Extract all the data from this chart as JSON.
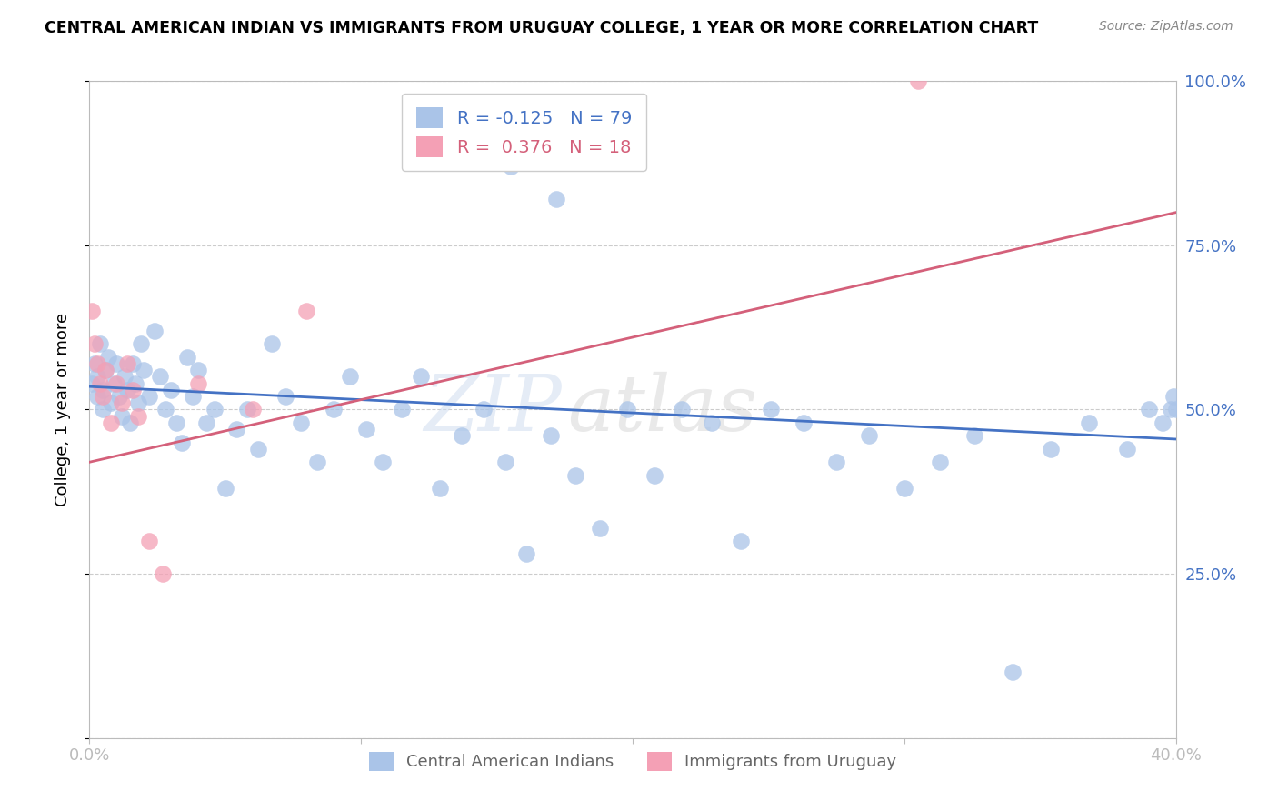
{
  "title": "CENTRAL AMERICAN INDIAN VS IMMIGRANTS FROM URUGUAY COLLEGE, 1 YEAR OR MORE CORRELATION CHART",
  "source": "Source: ZipAtlas.com",
  "ylabel": "College, 1 year or more",
  "xlim": [
    0.0,
    0.4
  ],
  "ylim": [
    0.0,
    1.0
  ],
  "blue_R": -0.125,
  "blue_N": 79,
  "pink_R": 0.376,
  "pink_N": 18,
  "blue_color": "#aac4e8",
  "pink_color": "#f4a0b5",
  "blue_line_color": "#4472c4",
  "pink_line_color": "#d4607a",
  "legend_label_blue": "Central American Indians",
  "legend_label_pink": "Immigrants from Uruguay",
  "watermark_1": "ZIP",
  "watermark_2": "atlas",
  "blue_line_x0": 0.0,
  "blue_line_y0": 0.535,
  "blue_line_x1": 0.4,
  "blue_line_y1": 0.455,
  "pink_line_x0": 0.0,
  "pink_line_y0": 0.42,
  "pink_line_x1": 0.4,
  "pink_line_y1": 0.8,
  "blue_pts_x": [
    0.001,
    0.002,
    0.003,
    0.003,
    0.004,
    0.005,
    0.005,
    0.006,
    0.007,
    0.008,
    0.009,
    0.01,
    0.011,
    0.012,
    0.013,
    0.014,
    0.015,
    0.016,
    0.017,
    0.018,
    0.019,
    0.02,
    0.022,
    0.024,
    0.026,
    0.028,
    0.03,
    0.032,
    0.034,
    0.036,
    0.038,
    0.04,
    0.043,
    0.046,
    0.05,
    0.054,
    0.058,
    0.062,
    0.067,
    0.072,
    0.078,
    0.084,
    0.09,
    0.096,
    0.102,
    0.108,
    0.115,
    0.122,
    0.129,
    0.137,
    0.145,
    0.153,
    0.161,
    0.17,
    0.179,
    0.188,
    0.198,
    0.208,
    0.218,
    0.229,
    0.24,
    0.251,
    0.263,
    0.275,
    0.287,
    0.3,
    0.313,
    0.326,
    0.34,
    0.354,
    0.368,
    0.382,
    0.39,
    0.395,
    0.398,
    0.399,
    0.4,
    0.155,
    0.172
  ],
  "blue_pts_y": [
    0.54,
    0.57,
    0.55,
    0.52,
    0.6,
    0.53,
    0.5,
    0.56,
    0.58,
    0.51,
    0.54,
    0.57,
    0.52,
    0.49,
    0.55,
    0.53,
    0.48,
    0.57,
    0.54,
    0.51,
    0.6,
    0.56,
    0.52,
    0.62,
    0.55,
    0.5,
    0.53,
    0.48,
    0.45,
    0.58,
    0.52,
    0.56,
    0.48,
    0.5,
    0.38,
    0.47,
    0.5,
    0.44,
    0.6,
    0.52,
    0.48,
    0.42,
    0.5,
    0.55,
    0.47,
    0.42,
    0.5,
    0.55,
    0.38,
    0.46,
    0.5,
    0.42,
    0.28,
    0.46,
    0.4,
    0.32,
    0.5,
    0.4,
    0.5,
    0.48,
    0.3,
    0.5,
    0.48,
    0.42,
    0.46,
    0.38,
    0.42,
    0.46,
    0.1,
    0.44,
    0.48,
    0.44,
    0.5,
    0.48,
    0.5,
    0.52,
    0.5,
    0.87,
    0.82
  ],
  "pink_pts_x": [
    0.001,
    0.002,
    0.003,
    0.004,
    0.005,
    0.006,
    0.008,
    0.01,
    0.012,
    0.014,
    0.016,
    0.018,
    0.022,
    0.027,
    0.04,
    0.06,
    0.08,
    0.305
  ],
  "pink_pts_y": [
    0.65,
    0.6,
    0.57,
    0.54,
    0.52,
    0.56,
    0.48,
    0.54,
    0.51,
    0.57,
    0.53,
    0.49,
    0.3,
    0.25,
    0.54,
    0.5,
    0.65,
    1.0
  ],
  "grid_color": "#cccccc",
  "axis_color": "#bbbbbb",
  "tick_color_blue": "#4472c4",
  "background_color": "#ffffff"
}
